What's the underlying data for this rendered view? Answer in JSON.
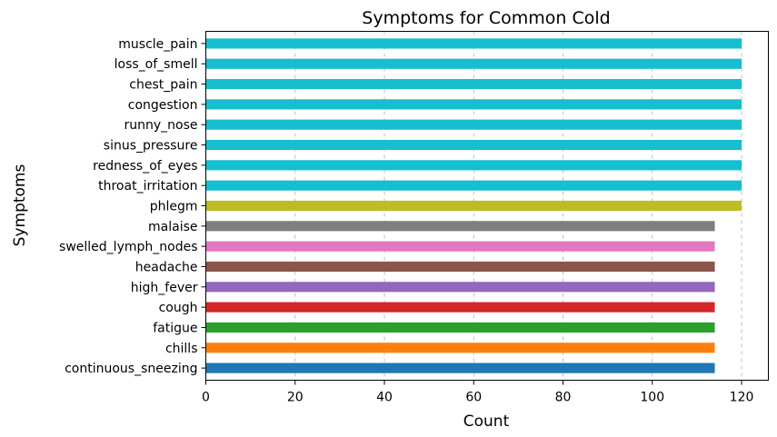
{
  "chart_data": {
    "type": "bar",
    "orientation": "horizontal",
    "title": "Symptoms for Common Cold",
    "xlabel": "Count",
    "ylabel": "Symptoms",
    "xlim": [
      0,
      126
    ],
    "xticks": [
      0,
      20,
      40,
      60,
      80,
      100,
      120
    ],
    "grid": "x-dashed",
    "categories": [
      "continuous_sneezing",
      "chills",
      "fatigue",
      "cough",
      "high_fever",
      "headache",
      "swelled_lymph_nodes",
      "malaise",
      "phlegm",
      "throat_irritation",
      "redness_of_eyes",
      "sinus_pressure",
      "runny_nose",
      "congestion",
      "chest_pain",
      "loss_of_smell",
      "muscle_pain"
    ],
    "values": [
      114,
      114,
      114,
      114,
      114,
      114,
      114,
      114,
      120,
      120,
      120,
      120,
      120,
      120,
      120,
      120,
      120
    ],
    "colors": [
      "#1f77b4",
      "#ff7f0e",
      "#2ca02c",
      "#d62728",
      "#9467bd",
      "#8c564b",
      "#e377c2",
      "#7f7f7f",
      "#bcbd22",
      "#17becf",
      "#17becf",
      "#17becf",
      "#17becf",
      "#17becf",
      "#17becf",
      "#17becf",
      "#17becf"
    ]
  }
}
